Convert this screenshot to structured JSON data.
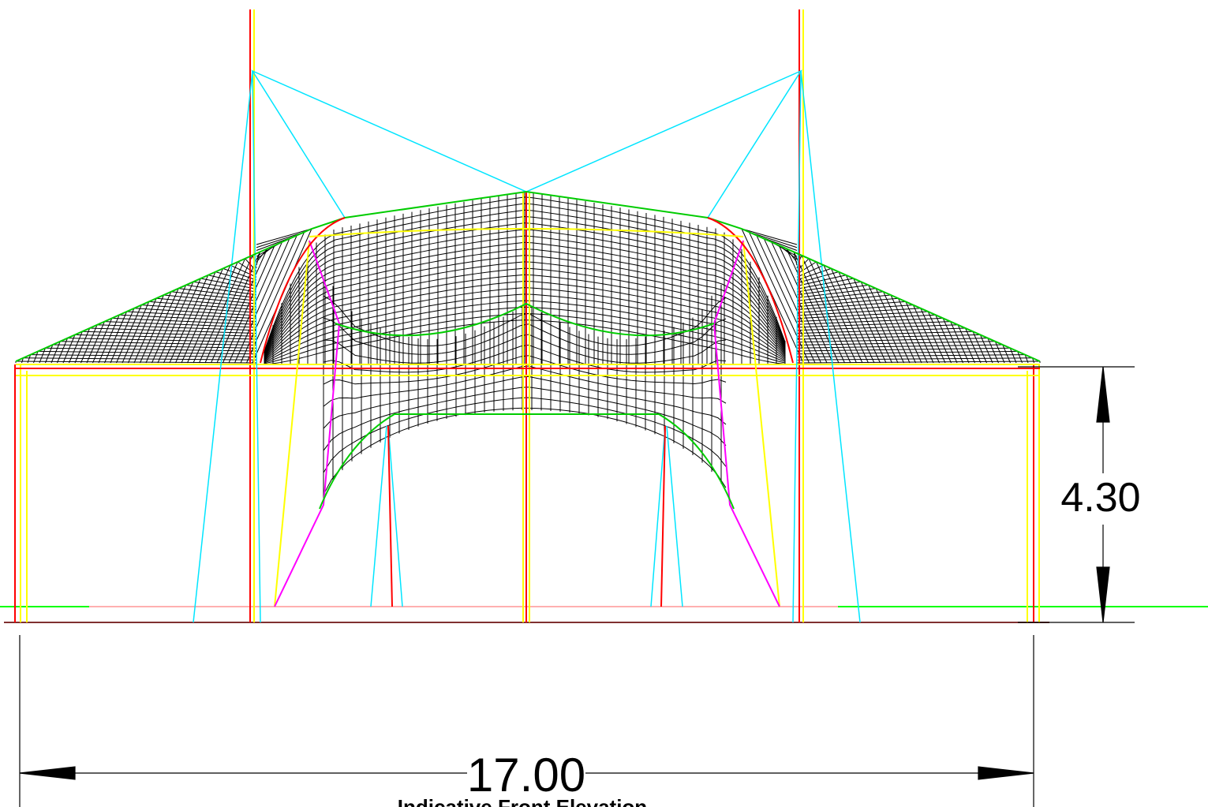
{
  "dimensions": {
    "height": "4.30",
    "width": "17.00"
  },
  "caption": "Indicative Front Elevation"
}
